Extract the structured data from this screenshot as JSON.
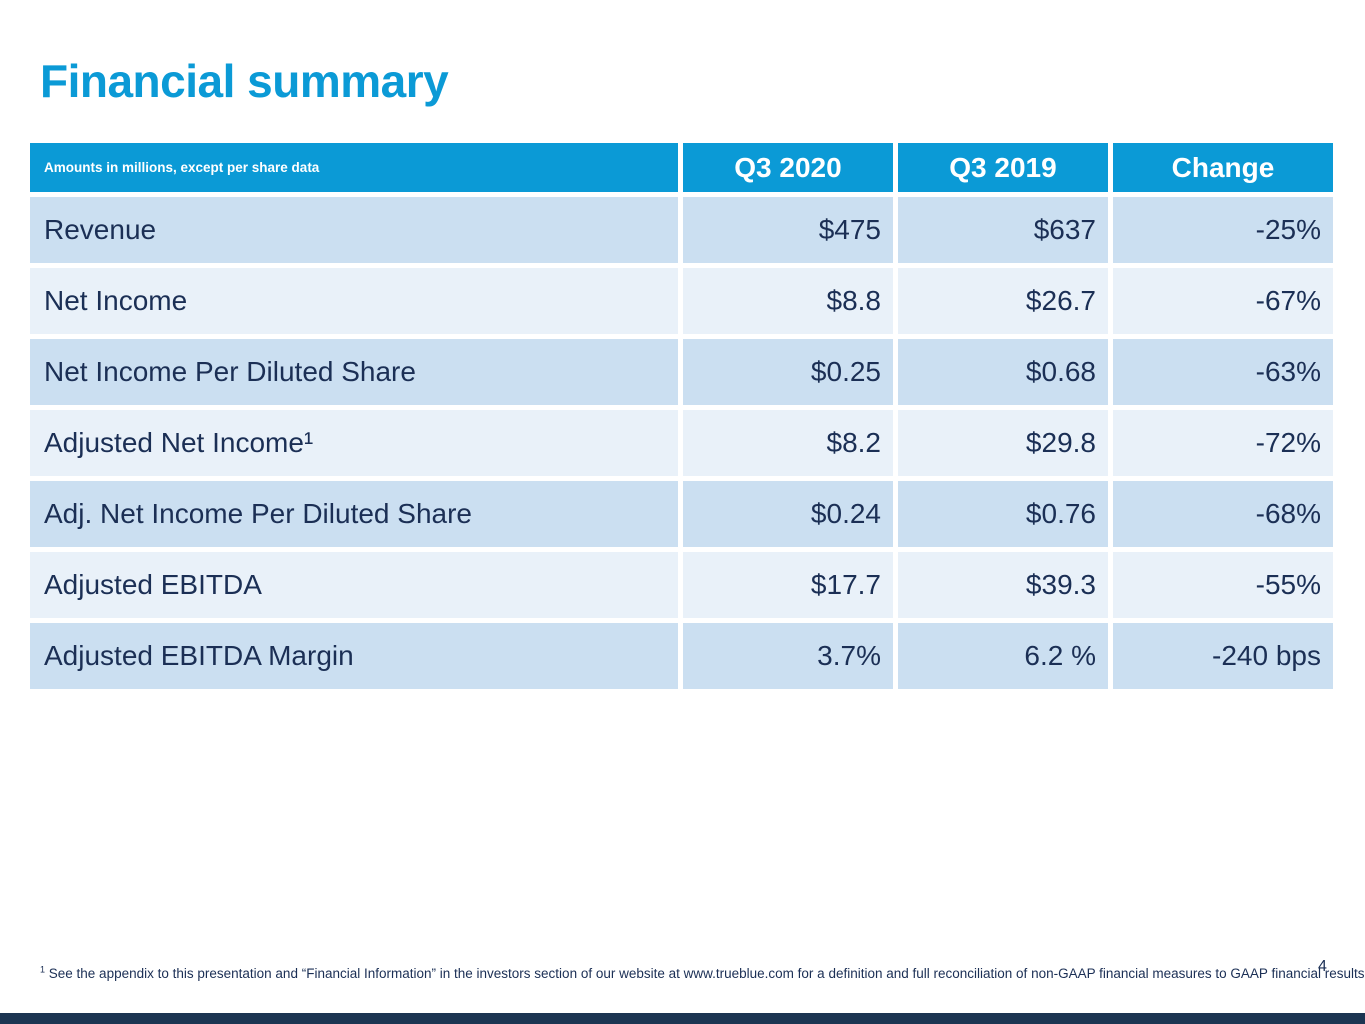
{
  "slide": {
    "title": "Financial summary",
    "page_number": "4"
  },
  "table": {
    "header": {
      "note": "Amounts in millions, except per share data",
      "columns": [
        "Q3 2020",
        "Q3 2019",
        "Change"
      ]
    },
    "rows": [
      {
        "label": "Revenue",
        "q3_2020": "$475",
        "q3_2019": "$637",
        "change": "-25%"
      },
      {
        "label": "Net Income",
        "q3_2020": "$8.8",
        "q3_2019": "$26.7",
        "change": "-67%"
      },
      {
        "label": "Net Income Per Diluted Share",
        "q3_2020": "$0.25",
        "q3_2019": "$0.68",
        "change": "-63%"
      },
      {
        "label": "Adjusted Net Income¹",
        "q3_2020": "$8.2",
        "q3_2019": "$29.8",
        "change": "-72%"
      },
      {
        "label": "Adj. Net Income Per Diluted Share",
        "q3_2020": "$0.24",
        "q3_2019": "$0.76",
        "change": "-68%"
      },
      {
        "label": "Adjusted EBITDA",
        "q3_2020": "$17.7",
        "q3_2019": "$39.3",
        "change": "-55%"
      },
      {
        "label": "Adjusted EBITDA Margin",
        "q3_2020": "3.7%",
        "q3_2019": "6.2 %",
        "change": "-240 bps"
      }
    ]
  },
  "footnote": {
    "marker": "1",
    "text": " See the appendix to this presentation and “Financial Information” in the investors section of our website at www.trueblue.com for a definition and full reconciliation of non-GAAP financial measures to GAAP financial results."
  },
  "colors": {
    "accent": "#0b9ad6",
    "row_dark": "#cbdff1",
    "row_light": "#e9f1f9",
    "navy": "#1b2f55",
    "footer_bar": "#1c3552"
  }
}
